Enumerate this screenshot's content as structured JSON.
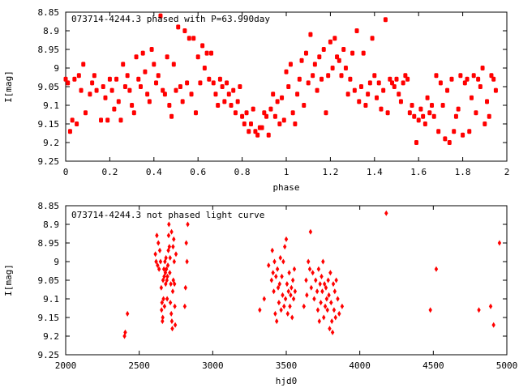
{
  "chart_data": [
    {
      "type": "scatter",
      "title": "073714-4244.3 phased with P=63.990day",
      "xlabel": "phase",
      "ylabel": "I[mag]",
      "xlim": [
        0,
        2
      ],
      "ylim": [
        8.85,
        9.25
      ],
      "y_inverted": true,
      "x_ticks": [
        "0",
        "0.2",
        "0.4",
        "0.6",
        "0.8",
        "1",
        "1.2",
        "1.4",
        "1.6",
        "1.8",
        "2"
      ],
      "y_ticks": [
        "8.85",
        "8.9",
        "8.95",
        "9",
        "9.05",
        "9.1",
        "9.15",
        "9.2",
        "9.25"
      ],
      "grid": false,
      "marker_color": "#ff0000",
      "points": [
        [
          0.0,
          9.03
        ],
        [
          0.01,
          9.04
        ],
        [
          0.02,
          9.17
        ],
        [
          0.03,
          9.14
        ],
        [
          0.04,
          9.03
        ],
        [
          0.05,
          9.15
        ],
        [
          0.06,
          9.02
        ],
        [
          0.07,
          9.06
        ],
        [
          0.08,
          8.99
        ],
        [
          0.09,
          9.12
        ],
        [
          0.11,
          9.07
        ],
        [
          0.12,
          9.04
        ],
        [
          0.13,
          9.02
        ],
        [
          0.14,
          9.06
        ],
        [
          0.16,
          9.14
        ],
        [
          0.17,
          9.05
        ],
        [
          0.18,
          9.08
        ],
        [
          0.19,
          9.14
        ],
        [
          0.2,
          9.03
        ],
        [
          0.21,
          9.06
        ],
        [
          0.22,
          9.11
        ],
        [
          0.23,
          9.03
        ],
        [
          0.24,
          9.09
        ],
        [
          0.25,
          9.14
        ],
        [
          0.26,
          8.99
        ],
        [
          0.27,
          9.05
        ],
        [
          0.28,
          9.02
        ],
        [
          0.29,
          9.06
        ],
        [
          0.3,
          9.1
        ],
        [
          0.31,
          9.12
        ],
        [
          0.32,
          8.97
        ],
        [
          0.33,
          9.03
        ],
        [
          0.34,
          9.05
        ],
        [
          0.35,
          8.96
        ],
        [
          0.36,
          9.01
        ],
        [
          0.37,
          9.07
        ],
        [
          0.38,
          9.09
        ],
        [
          0.39,
          8.95
        ],
        [
          0.4,
          8.99
        ],
        [
          0.41,
          9.04
        ],
        [
          0.42,
          9.02
        ],
        [
          0.43,
          8.86
        ],
        [
          0.44,
          9.06
        ],
        [
          0.45,
          9.07
        ],
        [
          0.46,
          8.97
        ],
        [
          0.47,
          9.1
        ],
        [
          0.48,
          9.13
        ],
        [
          0.49,
          8.99
        ],
        [
          0.5,
          9.06
        ],
        [
          0.51,
          8.89
        ],
        [
          0.52,
          9.05
        ],
        [
          0.53,
          9.09
        ],
        [
          0.54,
          8.9
        ],
        [
          0.55,
          9.04
        ],
        [
          0.56,
          8.92
        ],
        [
          0.57,
          9.07
        ],
        [
          0.58,
          8.92
        ],
        [
          0.59,
          9.12
        ],
        [
          0.6,
          8.97
        ],
        [
          0.61,
          9.04
        ],
        [
          0.62,
          8.94
        ],
        [
          0.63,
          9.0
        ],
        [
          0.64,
          8.96
        ],
        [
          0.65,
          9.03
        ],
        [
          0.66,
          8.96
        ],
        [
          0.67,
          9.04
        ],
        [
          0.68,
          9.07
        ],
        [
          0.69,
          9.1
        ],
        [
          0.7,
          9.03
        ],
        [
          0.71,
          9.05
        ],
        [
          0.72,
          9.09
        ],
        [
          0.73,
          9.04
        ],
        [
          0.74,
          9.07
        ],
        [
          0.75,
          9.1
        ],
        [
          0.76,
          9.06
        ],
        [
          0.77,
          9.12
        ],
        [
          0.78,
          9.09
        ],
        [
          0.79,
          9.05
        ],
        [
          0.8,
          9.13
        ],
        [
          0.81,
          9.15
        ],
        [
          0.82,
          9.12
        ],
        [
          0.83,
          9.17
        ],
        [
          0.84,
          9.15
        ],
        [
          0.85,
          9.11
        ],
        [
          0.86,
          9.17
        ],
        [
          0.87,
          9.18
        ],
        [
          0.88,
          9.16
        ],
        [
          0.89,
          9.16
        ],
        [
          0.9,
          9.12
        ],
        [
          0.91,
          9.13
        ],
        [
          0.92,
          9.18
        ],
        [
          0.93,
          9.11
        ],
        [
          0.94,
          9.07
        ],
        [
          0.95,
          9.13
        ],
        [
          0.96,
          9.09
        ],
        [
          0.97,
          9.15
        ],
        [
          0.98,
          9.08
        ],
        [
          0.99,
          9.14
        ],
        [
          1.0,
          9.01
        ],
        [
          1.01,
          9.05
        ],
        [
          1.02,
          8.99
        ],
        [
          1.03,
          9.12
        ],
        [
          1.04,
          9.15
        ],
        [
          1.05,
          9.07
        ],
        [
          1.06,
          9.03
        ],
        [
          1.07,
          8.98
        ],
        [
          1.08,
          9.1
        ],
        [
          1.09,
          8.96
        ],
        [
          1.1,
          9.04
        ],
        [
          1.11,
          8.91
        ],
        [
          1.12,
          9.02
        ],
        [
          1.13,
          8.99
        ],
        [
          1.14,
          9.06
        ],
        [
          1.15,
          8.97
        ],
        [
          1.16,
          9.03
        ],
        [
          1.17,
          8.95
        ],
        [
          1.18,
          9.12
        ],
        [
          1.19,
          9.02
        ],
        [
          1.2,
          8.93
        ],
        [
          1.21,
          9.0
        ],
        [
          1.22,
          8.92
        ],
        [
          1.23,
          8.97
        ],
        [
          1.24,
          8.98
        ],
        [
          1.25,
          9.02
        ],
        [
          1.26,
          8.95
        ],
        [
          1.27,
          9.0
        ],
        [
          1.28,
          9.07
        ],
        [
          1.29,
          9.03
        ],
        [
          1.3,
          8.96
        ],
        [
          1.31,
          9.06
        ],
        [
          1.32,
          8.9
        ],
        [
          1.33,
          9.09
        ],
        [
          1.34,
          9.05
        ],
        [
          1.35,
          8.96
        ],
        [
          1.36,
          9.1
        ],
        [
          1.37,
          9.07
        ],
        [
          1.38,
          9.04
        ],
        [
          1.39,
          8.92
        ],
        [
          1.4,
          9.02
        ],
        [
          1.41,
          9.08
        ],
        [
          1.42,
          9.04
        ],
        [
          1.43,
          9.11
        ],
        [
          1.44,
          9.06
        ],
        [
          1.45,
          8.87
        ],
        [
          1.46,
          9.12
        ],
        [
          1.47,
          9.03
        ],
        [
          1.48,
          9.04
        ],
        [
          1.49,
          9.05
        ],
        [
          1.5,
          9.03
        ],
        [
          1.51,
          9.07
        ],
        [
          1.52,
          9.09
        ],
        [
          1.53,
          9.04
        ],
        [
          1.54,
          9.02
        ],
        [
          1.55,
          9.03
        ],
        [
          1.56,
          9.12
        ],
        [
          1.57,
          9.1
        ],
        [
          1.58,
          9.13
        ],
        [
          1.59,
          9.2
        ],
        [
          1.6,
          9.14
        ],
        [
          1.61,
          9.11
        ],
        [
          1.62,
          9.13
        ],
        [
          1.63,
          9.15
        ],
        [
          1.64,
          9.08
        ],
        [
          1.65,
          9.12
        ],
        [
          1.66,
          9.1
        ],
        [
          1.67,
          9.13
        ],
        [
          1.68,
          9.02
        ],
        [
          1.69,
          9.17
        ],
        [
          1.7,
          9.04
        ],
        [
          1.71,
          9.1
        ],
        [
          1.72,
          9.19
        ],
        [
          1.73,
          9.06
        ],
        [
          1.74,
          9.2
        ],
        [
          1.75,
          9.03
        ],
        [
          1.76,
          9.17
        ],
        [
          1.77,
          9.13
        ],
        [
          1.78,
          9.11
        ],
        [
          1.79,
          9.02
        ],
        [
          1.8,
          9.18
        ],
        [
          1.81,
          9.04
        ],
        [
          1.82,
          9.03
        ],
        [
          1.83,
          9.17
        ],
        [
          1.84,
          9.08
        ],
        [
          1.85,
          9.02
        ],
        [
          1.86,
          9.12
        ],
        [
          1.87,
          9.03
        ],
        [
          1.88,
          9.05
        ],
        [
          1.89,
          9.0
        ],
        [
          1.9,
          9.15
        ],
        [
          1.91,
          9.09
        ],
        [
          1.92,
          9.13
        ],
        [
          1.93,
          9.02
        ],
        [
          1.94,
          9.03
        ],
        [
          1.95,
          9.06
        ]
      ]
    },
    {
      "type": "scatter",
      "title": "073714-4244.3 not phased light curve",
      "xlabel": "hjd0",
      "ylabel": "I[mag]",
      "xlim": [
        2000,
        5000
      ],
      "ylim": [
        8.85,
        9.25
      ],
      "y_inverted": true,
      "x_ticks": [
        "2000",
        "2500",
        "3000",
        "3500",
        "4000",
        "4500",
        "5000"
      ],
      "y_ticks": [
        "8.85",
        "8.9",
        "8.95",
        "9",
        "9.05",
        "9.1",
        "9.15",
        "9.2",
        "9.25"
      ],
      "grid": false,
      "marker_color": "#ff0000",
      "points": [
        [
          2400,
          9.2
        ],
        [
          2405,
          9.19
        ],
        [
          2420,
          9.14
        ],
        [
          2610,
          8.98
        ],
        [
          2615,
          9.0
        ],
        [
          2620,
          8.93
        ],
        [
          2625,
          9.01
        ],
        [
          2630,
          8.95
        ],
        [
          2635,
          9.02
        ],
        [
          2640,
          8.97
        ],
        [
          2645,
          9.0
        ],
        [
          2650,
          9.07
        ],
        [
          2652,
          9.13
        ],
        [
          2655,
          9.11
        ],
        [
          2658,
          9.16
        ],
        [
          2660,
          9.15
        ],
        [
          2662,
          9.05
        ],
        [
          2665,
          9.1
        ],
        [
          2668,
          9.02
        ],
        [
          2670,
          9.04
        ],
        [
          2672,
          9.12
        ],
        [
          2675,
          9.0
        ],
        [
          2678,
          9.03
        ],
        [
          2680,
          9.06
        ],
        [
          2682,
          8.99
        ],
        [
          2685,
          9.02
        ],
        [
          2688,
          9.05
        ],
        [
          2690,
          9.1
        ],
        [
          2692,
          9.04
        ],
        [
          2695,
          9.01
        ],
        [
          2698,
          8.97
        ],
        [
          2700,
          8.93
        ],
        [
          2702,
          8.9
        ],
        [
          2705,
          8.96
        ],
        [
          2708,
          9.03
        ],
        [
          2710,
          8.99
        ],
        [
          2712,
          9.11
        ],
        [
          2715,
          9.06
        ],
        [
          2718,
          9.14
        ],
        [
          2720,
          8.92
        ],
        [
          2722,
          9.16
        ],
        [
          2725,
          9.18
        ],
        [
          2728,
          9.08
        ],
        [
          2730,
          8.96
        ],
        [
          2732,
          9.05
        ],
        [
          2735,
          8.94
        ],
        [
          2738,
          9.0
        ],
        [
          2740,
          9.06
        ],
        [
          2742,
          9.12
        ],
        [
          2745,
          9.17
        ],
        [
          2750,
          8.98
        ],
        [
          2810,
          9.12
        ],
        [
          2815,
          9.07
        ],
        [
          2820,
          8.95
        ],
        [
          2825,
          9.0
        ],
        [
          2830,
          8.9
        ],
        [
          3320,
          9.13
        ],
        [
          3350,
          9.1
        ],
        [
          3380,
          9.01
        ],
        [
          3400,
          9.05
        ],
        [
          3405,
          8.97
        ],
        [
          3410,
          9.03
        ],
        [
          3415,
          9.08
        ],
        [
          3420,
          9.0
        ],
        [
          3425,
          9.14
        ],
        [
          3430,
          9.04
        ],
        [
          3435,
          9.16
        ],
        [
          3440,
          9.02
        ],
        [
          3445,
          9.07
        ],
        [
          3450,
          9.11
        ],
        [
          3455,
          9.06
        ],
        [
          3460,
          8.99
        ],
        [
          3465,
          9.13
        ],
        [
          3470,
          9.04
        ],
        [
          3475,
          9.09
        ],
        [
          3480,
          9.0
        ],
        [
          3485,
          9.12
        ],
        [
          3490,
          8.96
        ],
        [
          3495,
          9.1
        ],
        [
          3500,
          8.94
        ],
        [
          3505,
          9.06
        ],
        [
          3510,
          9.14
        ],
        [
          3515,
          9.08
        ],
        [
          3520,
          9.03
        ],
        [
          3525,
          9.12
        ],
        [
          3530,
          9.09
        ],
        [
          3535,
          9.07
        ],
        [
          3540,
          9.15
        ],
        [
          3545,
          9.05
        ],
        [
          3550,
          9.1
        ],
        [
          3555,
          9.02
        ],
        [
          3560,
          9.08
        ],
        [
          3620,
          9.12
        ],
        [
          3635,
          9.05
        ],
        [
          3640,
          9.09
        ],
        [
          3650,
          9.0
        ],
        [
          3660,
          9.02
        ],
        [
          3665,
          8.92
        ],
        [
          3670,
          9.07
        ],
        [
          3680,
          9.03
        ],
        [
          3690,
          9.1
        ],
        [
          3700,
          9.05
        ],
        [
          3710,
          9.08
        ],
        [
          3715,
          9.13
        ],
        [
          3720,
          9.02
        ],
        [
          3725,
          9.16
        ],
        [
          3730,
          9.06
        ],
        [
          3735,
          9.11
        ],
        [
          3740,
          9.04
        ],
        [
          3745,
          9.08
        ],
        [
          3750,
          9.0
        ],
        [
          3755,
          9.15
        ],
        [
          3760,
          9.06
        ],
        [
          3765,
          9.12
        ],
        [
          3770,
          9.07
        ],
        [
          3775,
          9.1
        ],
        [
          3780,
          9.13
        ],
        [
          3785,
          9.05
        ],
        [
          3790,
          9.09
        ],
        [
          3795,
          9.18
        ],
        [
          3800,
          9.03
        ],
        [
          3805,
          9.11
        ],
        [
          3810,
          9.16
        ],
        [
          3815,
          9.19
        ],
        [
          3820,
          9.06
        ],
        [
          3825,
          9.13
        ],
        [
          3830,
          9.08
        ],
        [
          3835,
          9.15
        ],
        [
          3840,
          9.05
        ],
        [
          3850,
          9.1
        ],
        [
          3860,
          9.14
        ],
        [
          3880,
          9.12
        ],
        [
          4180,
          8.87
        ],
        [
          4480,
          9.13
        ],
        [
          4520,
          9.02
        ],
        [
          4810,
          9.13
        ],
        [
          4890,
          9.12
        ],
        [
          4910,
          9.17
        ],
        [
          4950,
          8.95
        ]
      ]
    }
  ]
}
